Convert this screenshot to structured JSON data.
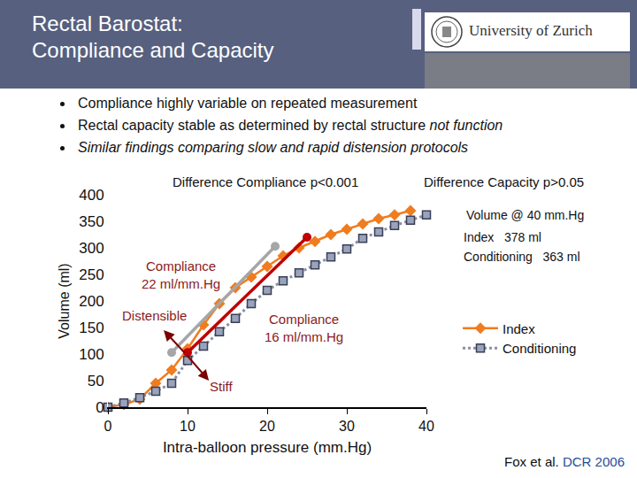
{
  "header": {
    "title_lines": [
      "Rectal Barostat:",
      "Compliance and Capacity"
    ],
    "logo": "University of Zurich"
  },
  "bullets": [
    [
      {
        "text": "Compliance highly variable on repeated measurement",
        "italic": false
      }
    ],
    [
      {
        "text": "Rectal capacity stable as determined by rectal structure ",
        "italic": false
      },
      {
        "text": "not function",
        "italic": true
      }
    ],
    [
      {
        "text": "Similar findings comparing slow and rapid distension protocols",
        "italic": true
      }
    ]
  ],
  "chart_data": {
    "type": "line",
    "x_label": "Intra-balloon pressure (mm.Hg)",
    "y_label": "Volume (ml)",
    "xlim": [
      0,
      40
    ],
    "ylim": [
      0,
      400
    ],
    "xticks": [
      0,
      10,
      20,
      30,
      40
    ],
    "yticks": [
      0,
      50,
      100,
      150,
      200,
      250,
      300,
      350,
      400
    ],
    "grid": false,
    "legend": "right",
    "series": [
      {
        "name": "Index",
        "color": "#f07c1e",
        "marker": "diamond",
        "line_style": "solid",
        "x": [
          0,
          2,
          4,
          6,
          8,
          10,
          12,
          14,
          16,
          18,
          20,
          22,
          24,
          26,
          28,
          30,
          32,
          34,
          36,
          38
        ],
        "values": [
          0,
          5,
          15,
          45,
          70,
          110,
          155,
          195,
          225,
          245,
          265,
          285,
          300,
          312,
          325,
          335,
          345,
          355,
          362,
          370
        ]
      },
      {
        "name": "Conditioning",
        "color": "#8a8fa3",
        "marker": "square",
        "line_style": "dotted",
        "x": [
          0,
          2,
          4,
          6,
          8,
          10,
          12,
          14,
          16,
          18,
          20,
          22,
          24,
          26,
          28,
          30,
          32,
          34,
          36,
          38,
          40
        ],
        "values": [
          0,
          8,
          18,
          30,
          45,
          88,
          115,
          142,
          167,
          195,
          220,
          238,
          253,
          268,
          283,
          298,
          318,
          330,
          342,
          352,
          362
        ]
      }
    ],
    "fit_lines": [
      {
        "x": [
          8,
          21
        ],
        "values": [
          103,
          303
        ],
        "color": "#a6a6a6",
        "marker": "circle"
      },
      {
        "x": [
          10,
          25
        ],
        "values": [
          103,
          320
        ],
        "color": "#c00000",
        "marker": "circle"
      }
    ],
    "annotations": [
      {
        "lines": [
          "Compliance",
          "22 ml/mm.Hg"
        ]
      },
      {
        "lines": [
          "Compliance",
          "16 ml/mm.Hg"
        ]
      },
      {
        "lines": [
          "Distensible"
        ]
      },
      {
        "lines": [
          "Stiff"
        ]
      }
    ],
    "notes": [
      "Difference Compliance p<0.001",
      "Difference Capacity p>0.05"
    ],
    "capacity": {
      "title": "Volume @ 40 mm.Hg",
      "items": [
        {
          "label": "Index",
          "text": "378 ml"
        },
        {
          "label": "Conditioning",
          "text": "363 ml"
        }
      ]
    }
  },
  "citation": {
    "authors": "Fox et al.",
    "journal": "DCR 2006"
  }
}
